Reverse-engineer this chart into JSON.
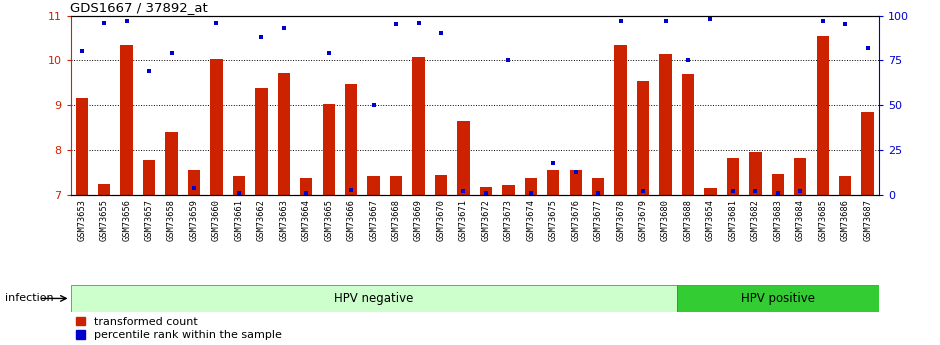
{
  "title": "GDS1667 / 37892_at",
  "samples": [
    "GSM73653",
    "GSM73655",
    "GSM73656",
    "GSM73657",
    "GSM73658",
    "GSM73659",
    "GSM73660",
    "GSM73661",
    "GSM73662",
    "GSM73663",
    "GSM73664",
    "GSM73665",
    "GSM73666",
    "GSM73667",
    "GSM73668",
    "GSM73669",
    "GSM73670",
    "GSM73671",
    "GSM73672",
    "GSM73673",
    "GSM73674",
    "GSM73675",
    "GSM73676",
    "GSM73677",
    "GSM73678",
    "GSM73679",
    "GSM73680",
    "GSM73688",
    "GSM73654",
    "GSM73681",
    "GSM73682",
    "GSM73683",
    "GSM73684",
    "GSM73685",
    "GSM73686",
    "GSM73687"
  ],
  "red_values": [
    9.15,
    7.25,
    10.35,
    7.78,
    8.4,
    7.55,
    10.02,
    7.43,
    9.38,
    9.72,
    7.37,
    9.02,
    9.47,
    7.43,
    7.43,
    10.08,
    7.45,
    8.65,
    7.18,
    7.22,
    7.37,
    7.55,
    7.55,
    7.38,
    10.35,
    9.55,
    10.15,
    9.7,
    7.15,
    7.82,
    7.95,
    7.47,
    7.82,
    10.55,
    7.43,
    8.85
  ],
  "blue_pct": [
    80,
    96,
    97,
    69,
    79,
    4,
    96,
    1,
    88,
    93,
    1,
    79,
    3,
    50,
    95,
    96,
    90,
    2,
    1,
    75,
    1,
    18,
    13,
    1,
    97,
    2,
    97,
    75,
    98,
    2,
    2,
    1,
    2,
    97,
    95,
    82
  ],
  "hpv_negative_count": 27,
  "hpv_negative_label": "HPV negative",
  "hpv_positive_label": "HPV positive",
  "ylim_left": [
    7,
    11
  ],
  "ylim_right": [
    0,
    100
  ],
  "yticks_left": [
    7,
    8,
    9,
    10,
    11
  ],
  "yticks_right": [
    0,
    25,
    50,
    75,
    100
  ],
  "bar_color": "#cc2200",
  "dot_color": "#0000cc",
  "bar_width": 0.55,
  "infection_label": "infection",
  "legend_red": "transformed count",
  "legend_blue": "percentile rank within the sample",
  "bg_color_neg": "#ccffcc",
  "bg_color_pos": "#33cc33",
  "bar_axis_color": "#cc2200",
  "dot_axis_color": "#0000cc",
  "xtick_bg": "#cccccc"
}
